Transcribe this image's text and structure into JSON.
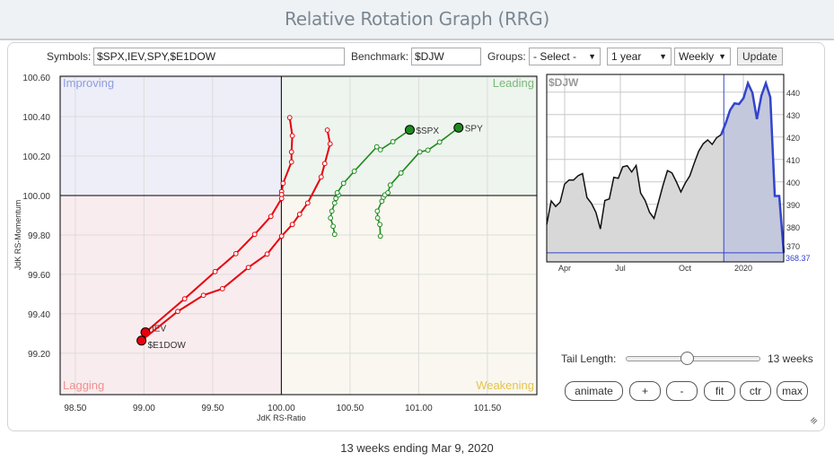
{
  "header": {
    "title": "Relative Rotation Graph (RRG)"
  },
  "controls": {
    "symbols_label": "Symbols:",
    "symbols_value": "$SPX,IEV,SPY,$E1DOW",
    "benchmark_label": "Benchmark:",
    "benchmark_value": "$DJW",
    "groups_label": "Groups:",
    "groups_value": "- Select -",
    "period_value": "1 year",
    "frequency_value": "Weekly",
    "update_label": "Update",
    "tail_label": "Tail Length:",
    "tail_value": "13 weeks",
    "tail_fraction": 0.45,
    "buttons": [
      "animate",
      "+",
      "-",
      "fit",
      "ctr",
      "max"
    ]
  },
  "footer": "13 weeks ending Mar 9, 2020",
  "colors": {
    "improving": "#8e9ce0",
    "leading": "#79b879",
    "lagging": "#f09090",
    "weakening": "#e6c448",
    "red": "#e8000b",
    "green": "#1e8a1e",
    "blue": "#3344cc"
  },
  "chart_data": [
    {
      "type": "scatter",
      "title": "Relative Rotation Graph",
      "xlabel": "JdK RS-Ratio",
      "ylabel": "JdK RS-Momentum",
      "xlim": [
        98.39,
        101.86
      ],
      "ylim": [
        98.99,
        100.605
      ],
      "xticks": [
        "98.50",
        "99.00",
        "99.50",
        "100.00",
        "100.50",
        "101.00",
        "101.50"
      ],
      "yticks": [
        "100.60",
        "100.40",
        "100.20",
        "100.00",
        "99.80",
        "99.60",
        "99.40",
        "99.20"
      ],
      "quadrants": [
        "Improving",
        "Leading",
        "Lagging",
        "Weakening"
      ],
      "grid": true,
      "series": [
        {
          "name": "IEV",
          "color": "red",
          "x": [
            100.061,
            100.08,
            100.074,
            100.074,
            100.013,
            100.002,
            100.002,
            100.002,
            99.924,
            99.806,
            99.669,
            99.518,
            99.296,
            99.011
          ],
          "y": [
            100.395,
            100.303,
            100.221,
            100.17,
            100.062,
            100.02,
            100.005,
            99.985,
            99.894,
            99.803,
            99.705,
            99.614,
            99.476,
            99.306
          ]
        },
        {
          "name": "$E1DOW",
          "color": "red",
          "x": [
            100.335,
            100.355,
            100.316,
            100.29,
            100.192,
            100.133,
            100.08,
            100.002,
            99.897,
            99.76,
            99.571,
            99.433,
            99.246,
            98.982
          ],
          "y": [
            100.332,
            100.262,
            100.162,
            100.094,
            99.962,
            99.905,
            99.853,
            99.794,
            99.703,
            99.635,
            99.527,
            99.494,
            99.412,
            99.264
          ]
        },
        {
          "name": "$SPX",
          "color": "green",
          "x": [
            100.388,
            100.377,
            100.358,
            100.368,
            100.388,
            100.397,
            100.416,
            100.407,
            100.453,
            100.531,
            100.695,
            100.721,
            100.812,
            100.935
          ],
          "y": [
            99.803,
            99.844,
            99.886,
            99.921,
            99.962,
            99.985,
            100.003,
            100.014,
            100.062,
            100.123,
            100.247,
            100.232,
            100.273,
            100.333
          ]
        },
        {
          "name": "SPY",
          "color": "green",
          "x": [
            100.721,
            100.717,
            100.701,
            100.699,
            100.732,
            100.743,
            100.754,
            100.776,
            100.793,
            100.871,
            101.008,
            101.067,
            101.152,
            101.29
          ],
          "y": [
            99.794,
            99.853,
            99.886,
            99.921,
            99.971,
            99.991,
            100.003,
            100.014,
            100.053,
            100.114,
            100.221,
            100.23,
            100.271,
            100.344
          ]
        }
      ]
    },
    {
      "type": "area",
      "title": "$DJW",
      "ylim": [
        364.3,
        447.9
      ],
      "yticks": [
        "440",
        "430",
        "420",
        "410",
        "400",
        "390",
        "380",
        "370"
      ],
      "xticks": [
        "Apr",
        "Jul",
        "Oct",
        "2020"
      ],
      "last_value": "368.37",
      "highlight_start_index": 40,
      "values": [
        381,
        391.5,
        389,
        391,
        399,
        400.8,
        400.8,
        402.7,
        403.7,
        393,
        390.4,
        386.4,
        379,
        391.7,
        392.4,
        402,
        401.6,
        406.7,
        407.2,
        404.4,
        407.3,
        395,
        391.7,
        386.4,
        383.7,
        391,
        398.4,
        405,
        404,
        400,
        395.5,
        399.5,
        402.7,
        408.4,
        413.7,
        417,
        418.7,
        416.7,
        419.7,
        421,
        426,
        432,
        435,
        434.7,
        437.3,
        444,
        439.7,
        428,
        438.4,
        444,
        437.7,
        393.7,
        393.7,
        368.4
      ]
    }
  ]
}
